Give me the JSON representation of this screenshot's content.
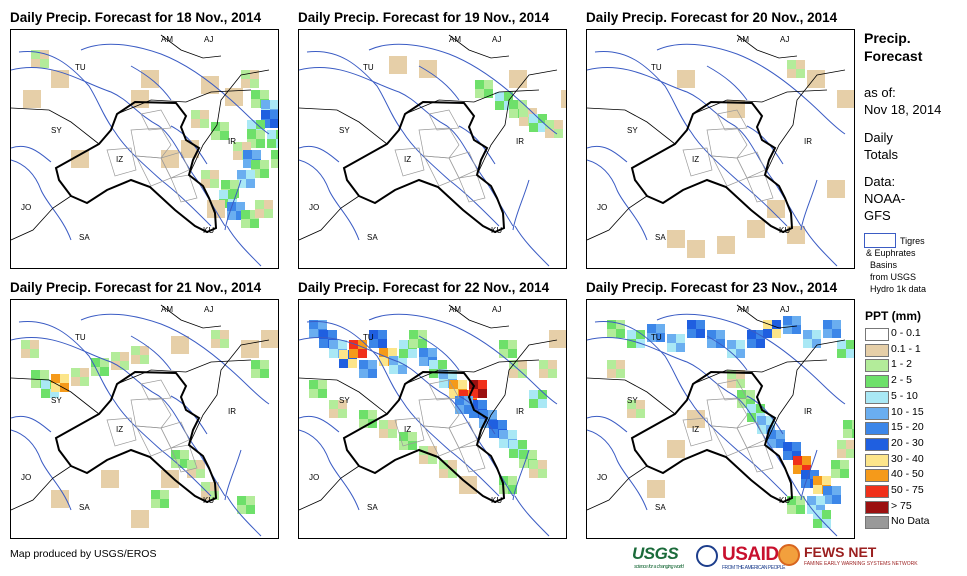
{
  "panels": [
    {
      "title": "Daily Precip. Forecast for 18 Nov., 2014"
    },
    {
      "title": "Daily Precip. Forecast for 19 Nov., 2014"
    },
    {
      "title": "Daily Precip. Forecast for 20 Nov., 2014"
    },
    {
      "title": "Daily Precip. Forecast for 21 Nov., 2014"
    },
    {
      "title": "Daily Precip. Forecast for 22 Nov., 2014"
    },
    {
      "title": "Daily Precip. Forecast for 23 Nov., 2014"
    }
  ],
  "country_codes": [
    "AM",
    "AJ",
    "TU",
    "SY",
    "IZ",
    "IR",
    "JO",
    "SA",
    "KU"
  ],
  "legend": {
    "title_line1": "Precip.",
    "title_line2": "Forecast",
    "asof_label": "as of:",
    "asof_date": "Nov 18, 2014",
    "daily_line1": "Daily",
    "daily_line2": "Totals",
    "data_line1": "Data:",
    "data_line2": "NOAA-",
    "data_line3": "GFS",
    "basin_line1": "Tigres",
    "basin_line2": "& Euphrates",
    "basin_line3": "Basins",
    "basin_line4": "from USGS",
    "basin_line5": "Hydro 1k data",
    "ppt_title": "PPT (mm)",
    "classes": [
      {
        "label": "0 - 0.1",
        "color": "#ffffff"
      },
      {
        "label": "0.1 - 1",
        "color": "#e6cfa8"
      },
      {
        "label": "1 - 2",
        "color": "#b3ec9a"
      },
      {
        "label": "2 - 5",
        "color": "#6ee06a"
      },
      {
        "label": "5 - 10",
        "color": "#a9e8f5"
      },
      {
        "label": "10 - 15",
        "color": "#6aaef0"
      },
      {
        "label": "15 - 20",
        "color": "#3c86e8"
      },
      {
        "label": "20 - 30",
        "color": "#1f5fe0"
      },
      {
        "label": "30 - 40",
        "color": "#fce58a"
      },
      {
        "label": "40 - 50",
        "color": "#f59a1a"
      },
      {
        "label": "50 - 75",
        "color": "#f0301a"
      },
      {
        "label": "> 75",
        "color": "#9b1010"
      },
      {
        "label": "No Data",
        "color": "#999999"
      }
    ]
  },
  "footer": {
    "credit": "Map produced by USGS/EROS"
  },
  "logos": {
    "usgs": "USGS",
    "usgs_tagline": "science for a changing world",
    "usaid": "USAID",
    "usaid_tagline": "FROM THE AMERICAN PEOPLE",
    "fews": "FEWS NET",
    "fews_tagline": "FAMINE EARLY WARNING SYSTEMS NETWORK"
  }
}
